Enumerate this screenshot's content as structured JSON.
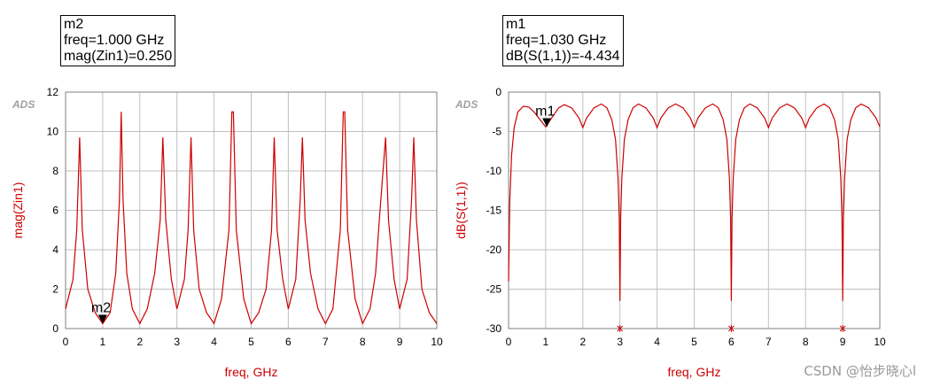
{
  "marker_boxes": [
    {
      "name": "m2",
      "line1": "freq=1.000 GHz",
      "line2": "mag(Zin1)=0.250"
    },
    {
      "name": "m1",
      "line1": "freq=1.030 GHz",
      "line2": "dB(S(1,1))=-4.434"
    }
  ],
  "watermark": "CSDN @怡步晓心l",
  "colors": {
    "trace": "#cc0000",
    "axis_label": "#cc0000",
    "grid": "#c0c0c0",
    "ads_logo": "#a0a0a0"
  },
  "chart_data": [
    {
      "type": "line",
      "logo": "ADS",
      "xlabel": "freq, GHz",
      "ylabel": "mag(Zin1)",
      "xlim": [
        0,
        10
      ],
      "ylim": [
        0,
        12
      ],
      "x_ticks": [
        "0",
        "1",
        "2",
        "3",
        "4",
        "5",
        "6",
        "7",
        "8",
        "9",
        "10"
      ],
      "y_ticks": [
        "0",
        "2",
        "4",
        "6",
        "8",
        "10",
        "12"
      ],
      "grid": true,
      "series": [
        {
          "x": [
            0,
            0.2,
            0.3,
            0.38,
            0.45,
            0.6,
            0.8,
            1.0,
            1.2,
            1.35,
            1.45,
            1.5,
            1.55,
            1.65,
            1.8,
            2.0,
            2.2,
            2.4,
            2.55,
            2.62,
            2.7,
            2.85,
            3.0,
            3.2,
            3.3,
            3.38,
            3.45,
            3.6,
            3.8,
            4.0,
            4.2,
            4.4,
            4.48,
            4.52,
            4.6,
            4.8,
            5.0,
            5.2,
            5.4,
            5.55,
            5.62,
            5.7,
            5.85,
            6.0,
            6.2,
            6.32,
            6.38,
            6.45,
            6.6,
            6.8,
            7.0,
            7.2,
            7.4,
            7.48,
            7.52,
            7.6,
            7.8,
            8.0,
            8.2,
            8.35,
            8.45,
            8.62,
            8.7,
            8.85,
            9.0,
            9.2,
            9.32,
            9.38,
            9.45,
            9.6,
            9.8,
            10.0
          ],
          "y": [
            1.0,
            2.5,
            5.0,
            9.7,
            5.0,
            2.0,
            0.8,
            0.25,
            0.8,
            2.8,
            6.5,
            11.0,
            6.5,
            2.8,
            1.0,
            0.25,
            1.0,
            2.8,
            5.5,
            9.7,
            5.5,
            2.5,
            1.0,
            2.5,
            5.0,
            9.7,
            5.0,
            2.0,
            0.8,
            0.25,
            1.5,
            5.0,
            11.0,
            11.0,
            5.0,
            1.5,
            0.25,
            0.8,
            2.0,
            5.0,
            9.7,
            5.0,
            2.5,
            1.0,
            2.5,
            6.5,
            9.7,
            5.5,
            2.8,
            1.0,
            0.25,
            1.0,
            5.0,
            11.0,
            11.0,
            5.0,
            1.5,
            0.25,
            1.0,
            2.8,
            5.5,
            9.7,
            5.5,
            2.5,
            1.0,
            2.5,
            6.5,
            9.7,
            5.5,
            2.0,
            0.8,
            0.25
          ]
        }
      ],
      "markers": [
        {
          "label": "m2",
          "x": 1.0,
          "y": 0.25
        }
      ]
    },
    {
      "type": "line",
      "logo": "ADS",
      "xlabel": "freq, GHz",
      "ylabel": "dB(S(1,1))",
      "xlim": [
        0,
        10
      ],
      "ylim": [
        -30,
        0
      ],
      "x_ticks": [
        "0",
        "1",
        "2",
        "3",
        "4",
        "5",
        "6",
        "7",
        "8",
        "9",
        "10"
      ],
      "y_ticks": [
        "-30",
        "-25",
        "-20",
        "-15",
        "-10",
        "-5",
        "0"
      ],
      "grid": true,
      "series": [
        {
          "x": [
            0.0,
            0.03,
            0.08,
            0.15,
            0.25,
            0.4,
            0.55,
            0.7,
            0.85,
            1.0,
            1.2,
            1.35,
            1.5,
            1.7,
            1.9,
            2.0,
            2.1,
            2.3,
            2.5,
            2.65,
            2.78,
            2.88,
            2.95,
            2.98,
            3.0,
            3.02,
            3.05,
            3.12,
            3.22,
            3.35,
            3.5,
            3.7,
            3.9,
            4.0,
            4.1,
            4.3,
            4.5,
            4.7,
            4.9,
            5.0,
            5.1,
            5.3,
            5.5,
            5.65,
            5.78,
            5.88,
            5.95,
            5.98,
            6.0,
            6.02,
            6.05,
            6.12,
            6.22,
            6.35,
            6.5,
            6.7,
            6.9,
            7.0,
            7.1,
            7.3,
            7.5,
            7.7,
            7.9,
            8.0,
            8.1,
            8.3,
            8.5,
            8.65,
            8.78,
            8.88,
            8.95,
            8.98,
            9.0,
            9.02,
            9.05,
            9.12,
            9.22,
            9.35,
            9.5,
            9.7,
            9.9,
            10.0
          ],
          "y": [
            -24.0,
            -14.0,
            -8.0,
            -4.5,
            -2.5,
            -1.8,
            -1.9,
            -2.6,
            -3.5,
            -4.4,
            -3.0,
            -2.0,
            -1.6,
            -2.0,
            -3.3,
            -4.5,
            -3.3,
            -2.0,
            -1.5,
            -2.0,
            -3.5,
            -6.0,
            -11.0,
            -16.0,
            -26.5,
            -16.0,
            -11.0,
            -6.0,
            -3.5,
            -2.0,
            -1.5,
            -2.0,
            -3.3,
            -4.5,
            -3.3,
            -2.0,
            -1.5,
            -2.0,
            -3.3,
            -4.5,
            -3.3,
            -2.0,
            -1.5,
            -2.0,
            -3.5,
            -6.0,
            -11.0,
            -16.0,
            -26.5,
            -16.0,
            -11.0,
            -6.0,
            -3.5,
            -2.0,
            -1.5,
            -2.0,
            -3.3,
            -4.5,
            -3.3,
            -2.0,
            -1.5,
            -2.0,
            -3.3,
            -4.5,
            -3.3,
            -2.0,
            -1.5,
            -2.0,
            -3.5,
            -6.0,
            -11.0,
            -16.0,
            -26.5,
            -16.0,
            -11.0,
            -6.0,
            -3.5,
            -2.0,
            -1.5,
            -2.0,
            -3.3,
            -4.4
          ]
        }
      ],
      "markers": [
        {
          "label": "m1",
          "x": 1.03,
          "y": -4.434
        }
      ],
      "points": [
        {
          "x": 3,
          "y": -30
        },
        {
          "x": 6,
          "y": -30
        },
        {
          "x": 9,
          "y": -30
        }
      ]
    }
  ]
}
